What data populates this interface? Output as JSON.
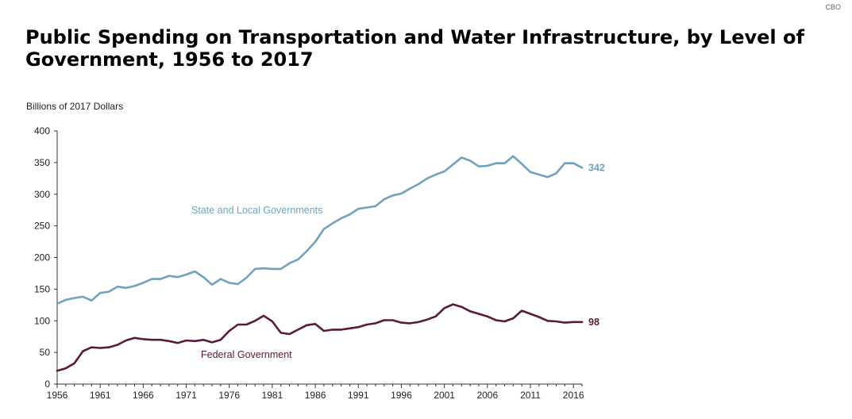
{
  "brand": "CBO",
  "title": "Public Spending on Transportation and Water Infrastructure, by Level of Government, 1956 to 2017",
  "chart_data": {
    "type": "line",
    "ylabel": "Billions of 2017 Dollars",
    "ylim": [
      0,
      400
    ],
    "xlim": [
      1956,
      2017
    ],
    "yticks": [
      0,
      50,
      100,
      150,
      200,
      250,
      300,
      350,
      400
    ],
    "xticks": [
      1956,
      1961,
      1966,
      1971,
      1976,
      1981,
      1986,
      1991,
      1996,
      2001,
      2006,
      2011,
      2016
    ],
    "grid": false,
    "x": [
      1956,
      1957,
      1958,
      1959,
      1960,
      1961,
      1962,
      1963,
      1964,
      1965,
      1966,
      1967,
      1968,
      1969,
      1970,
      1971,
      1972,
      1973,
      1974,
      1975,
      1976,
      1977,
      1978,
      1979,
      1980,
      1981,
      1982,
      1983,
      1984,
      1985,
      1986,
      1987,
      1988,
      1989,
      1990,
      1991,
      1992,
      1993,
      1994,
      1995,
      1996,
      1997,
      1998,
      1999,
      2000,
      2001,
      2002,
      2003,
      2004,
      2005,
      2006,
      2007,
      2008,
      2009,
      2010,
      2011,
      2012,
      2013,
      2014,
      2015,
      2016,
      2017
    ],
    "series": [
      {
        "name": "State and Local Governments",
        "color": "#6fa3bd",
        "end_label": "342",
        "values": [
          127,
          133,
          136,
          138,
          132,
          144,
          146,
          154,
          152,
          155,
          160,
          166,
          166,
          171,
          169,
          173,
          178,
          169,
          157,
          166,
          160,
          158,
          168,
          182,
          183,
          182,
          182,
          191,
          197,
          210,
          225,
          245,
          254,
          262,
          268,
          277,
          279,
          281,
          292,
          298,
          301,
          309,
          316,
          325,
          331,
          336,
          347,
          358,
          353,
          344,
          345,
          349,
          349,
          360,
          348,
          335,
          331,
          327,
          333,
          349,
          349,
          342
        ]
      },
      {
        "name": "Federal Government",
        "color": "#5a1a3a",
        "end_label": "98",
        "values": [
          21,
          25,
          33,
          52,
          58,
          57,
          58,
          62,
          69,
          73,
          71,
          70,
          70,
          68,
          65,
          69,
          68,
          70,
          66,
          70,
          84,
          94,
          94,
          100,
          108,
          99,
          81,
          79,
          86,
          93,
          95,
          84,
          86,
          86,
          88,
          90,
          94,
          96,
          101,
          101,
          97,
          96,
          98,
          102,
          107,
          120,
          126,
          122,
          115,
          111,
          107,
          101,
          99,
          104,
          116,
          111,
          106,
          100,
          99,
          97,
          98,
          98
        ]
      }
    ]
  }
}
